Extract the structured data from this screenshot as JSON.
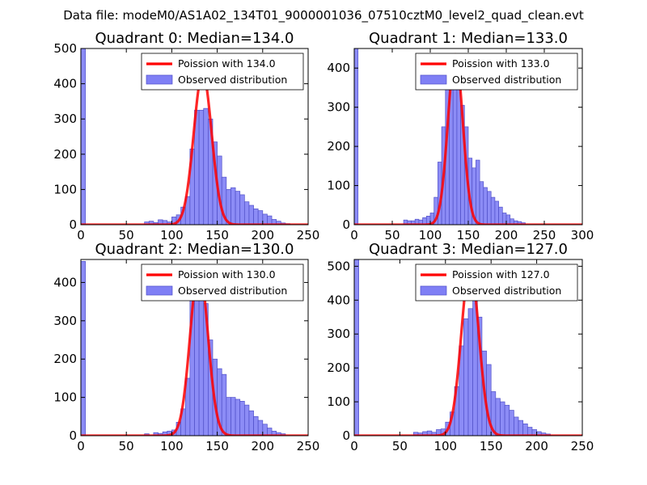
{
  "suptitle": "Data file: modeM0/AS1A02_134T01_9000001036_07510cztM0_level2_quad_clean.evt",
  "colors": {
    "bar_fill": "#7f7ff5",
    "bar_edge": "#5050c8",
    "fit_line": "#ff0000",
    "legend_border": "#000000"
  },
  "chart_data": [
    {
      "type": "bar",
      "title": "Quadrant 0: Median=134.0",
      "xlim": [
        0,
        250
      ],
      "ylim": [
        0,
        500
      ],
      "xticks": [
        "0",
        "50",
        "100",
        "150",
        "200",
        "250"
      ],
      "yticks": [
        "0",
        "100",
        "200",
        "300",
        "400",
        "500"
      ],
      "bin_width": 5,
      "legend": [
        "Poission with 134.0",
        "Observed distribution"
      ],
      "mu": 134.0,
      "poisson_peak": 430,
      "bins": [
        {
          "x": 0,
          "v": 500
        },
        {
          "x": 70,
          "v": 8
        },
        {
          "x": 75,
          "v": 10
        },
        {
          "x": 80,
          "v": 6
        },
        {
          "x": 85,
          "v": 14
        },
        {
          "x": 90,
          "v": 12
        },
        {
          "x": 95,
          "v": 8
        },
        {
          "x": 100,
          "v": 22
        },
        {
          "x": 105,
          "v": 28
        },
        {
          "x": 110,
          "v": 50
        },
        {
          "x": 115,
          "v": 80
        },
        {
          "x": 120,
          "v": 215
        },
        {
          "x": 125,
          "v": 325
        },
        {
          "x": 130,
          "v": 325
        },
        {
          "x": 135,
          "v": 330
        },
        {
          "x": 140,
          "v": 300
        },
        {
          "x": 145,
          "v": 235
        },
        {
          "x": 150,
          "v": 195
        },
        {
          "x": 155,
          "v": 135
        },
        {
          "x": 160,
          "v": 100
        },
        {
          "x": 165,
          "v": 105
        },
        {
          "x": 170,
          "v": 95
        },
        {
          "x": 175,
          "v": 85
        },
        {
          "x": 180,
          "v": 65
        },
        {
          "x": 185,
          "v": 55
        },
        {
          "x": 190,
          "v": 45
        },
        {
          "x": 195,
          "v": 40
        },
        {
          "x": 200,
          "v": 30
        },
        {
          "x": 205,
          "v": 25
        },
        {
          "x": 210,
          "v": 15
        },
        {
          "x": 215,
          "v": 10
        },
        {
          "x": 220,
          "v": 5
        },
        {
          "x": 225,
          "v": 3
        }
      ]
    },
    {
      "type": "bar",
      "title": "Quadrant 1: Median=133.0",
      "xlim": [
        0,
        300
      ],
      "ylim": [
        0,
        450
      ],
      "xticks": [
        "0",
        "50",
        "100",
        "150",
        "200",
        "250",
        "300"
      ],
      "yticks": [
        "0",
        "100",
        "200",
        "300",
        "400"
      ],
      "bin_width": 5,
      "legend": [
        "Poission with 133.0",
        "Observed distribution"
      ],
      "mu": 133.0,
      "poisson_peak": 435,
      "bins": [
        {
          "x": 0,
          "v": 450
        },
        {
          "x": 65,
          "v": 12
        },
        {
          "x": 70,
          "v": 10
        },
        {
          "x": 75,
          "v": 10
        },
        {
          "x": 80,
          "v": 14
        },
        {
          "x": 85,
          "v": 12
        },
        {
          "x": 90,
          "v": 18
        },
        {
          "x": 95,
          "v": 22
        },
        {
          "x": 100,
          "v": 30
        },
        {
          "x": 105,
          "v": 70
        },
        {
          "x": 110,
          "v": 160
        },
        {
          "x": 115,
          "v": 250
        },
        {
          "x": 120,
          "v": 355
        },
        {
          "x": 125,
          "v": 420
        },
        {
          "x": 130,
          "v": 375
        },
        {
          "x": 135,
          "v": 405
        },
        {
          "x": 140,
          "v": 305
        },
        {
          "x": 145,
          "v": 250
        },
        {
          "x": 150,
          "v": 170
        },
        {
          "x": 155,
          "v": 145
        },
        {
          "x": 160,
          "v": 165
        },
        {
          "x": 165,
          "v": 110
        },
        {
          "x": 170,
          "v": 95
        },
        {
          "x": 175,
          "v": 85
        },
        {
          "x": 180,
          "v": 70
        },
        {
          "x": 185,
          "v": 60
        },
        {
          "x": 190,
          "v": 45
        },
        {
          "x": 195,
          "v": 30
        },
        {
          "x": 200,
          "v": 25
        },
        {
          "x": 205,
          "v": 15
        },
        {
          "x": 210,
          "v": 10
        },
        {
          "x": 215,
          "v": 8
        },
        {
          "x": 220,
          "v": 5
        }
      ]
    },
    {
      "type": "bar",
      "title": "Quadrant 2: Median=130.0",
      "xlim": [
        0,
        250
      ],
      "ylim": [
        0,
        460
      ],
      "xticks": [
        "0",
        "50",
        "100",
        "150",
        "200",
        "250"
      ],
      "yticks": [
        "0",
        "100",
        "200",
        "300",
        "400"
      ],
      "bin_width": 5,
      "legend": [
        "Poission with 130.0",
        "Observed distribution"
      ],
      "mu": 130.0,
      "poisson_peak": 440,
      "bins": [
        {
          "x": 0,
          "v": 455
        },
        {
          "x": 70,
          "v": 5
        },
        {
          "x": 80,
          "v": 8
        },
        {
          "x": 85,
          "v": 6
        },
        {
          "x": 90,
          "v": 10
        },
        {
          "x": 95,
          "v": 12
        },
        {
          "x": 100,
          "v": 15
        },
        {
          "x": 105,
          "v": 35
        },
        {
          "x": 110,
          "v": 70
        },
        {
          "x": 115,
          "v": 150
        },
        {
          "x": 120,
          "v": 360
        },
        {
          "x": 125,
          "v": 400
        },
        {
          "x": 130,
          "v": 385
        },
        {
          "x": 135,
          "v": 345
        },
        {
          "x": 140,
          "v": 250
        },
        {
          "x": 145,
          "v": 200
        },
        {
          "x": 150,
          "v": 175
        },
        {
          "x": 155,
          "v": 160
        },
        {
          "x": 160,
          "v": 100
        },
        {
          "x": 165,
          "v": 100
        },
        {
          "x": 170,
          "v": 95
        },
        {
          "x": 175,
          "v": 90
        },
        {
          "x": 180,
          "v": 80
        },
        {
          "x": 185,
          "v": 65
        },
        {
          "x": 190,
          "v": 50
        },
        {
          "x": 195,
          "v": 40
        },
        {
          "x": 200,
          "v": 30
        },
        {
          "x": 205,
          "v": 20
        },
        {
          "x": 210,
          "v": 12
        },
        {
          "x": 215,
          "v": 8
        },
        {
          "x": 220,
          "v": 5
        }
      ]
    },
    {
      "type": "bar",
      "title": "Quadrant 3: Median=127.0",
      "xlim": [
        0,
        250
      ],
      "ylim": [
        0,
        520
      ],
      "xticks": [
        "0",
        "50",
        "100",
        "150",
        "200",
        "250"
      ],
      "yticks": [
        "0",
        "100",
        "200",
        "300",
        "400",
        "500"
      ],
      "bin_width": 5,
      "legend": [
        "Poission with 127.0",
        "Observed distribution"
      ],
      "mu": 127.0,
      "poisson_peak": 500,
      "bins": [
        {
          "x": 0,
          "v": 520
        },
        {
          "x": 65,
          "v": 10
        },
        {
          "x": 70,
          "v": 8
        },
        {
          "x": 75,
          "v": 12
        },
        {
          "x": 80,
          "v": 14
        },
        {
          "x": 85,
          "v": 10
        },
        {
          "x": 90,
          "v": 18
        },
        {
          "x": 95,
          "v": 20
        },
        {
          "x": 100,
          "v": 40
        },
        {
          "x": 105,
          "v": 70
        },
        {
          "x": 110,
          "v": 145
        },
        {
          "x": 115,
          "v": 265
        },
        {
          "x": 120,
          "v": 345
        },
        {
          "x": 125,
          "v": 375
        },
        {
          "x": 130,
          "v": 410
        },
        {
          "x": 135,
          "v": 350
        },
        {
          "x": 140,
          "v": 250
        },
        {
          "x": 145,
          "v": 210
        },
        {
          "x": 150,
          "v": 130
        },
        {
          "x": 155,
          "v": 110
        },
        {
          "x": 160,
          "v": 100
        },
        {
          "x": 165,
          "v": 90
        },
        {
          "x": 170,
          "v": 75
        },
        {
          "x": 175,
          "v": 55
        },
        {
          "x": 180,
          "v": 45
        },
        {
          "x": 185,
          "v": 35
        },
        {
          "x": 190,
          "v": 25
        },
        {
          "x": 195,
          "v": 18
        },
        {
          "x": 200,
          "v": 12
        },
        {
          "x": 205,
          "v": 8
        },
        {
          "x": 210,
          "v": 5
        }
      ]
    }
  ]
}
